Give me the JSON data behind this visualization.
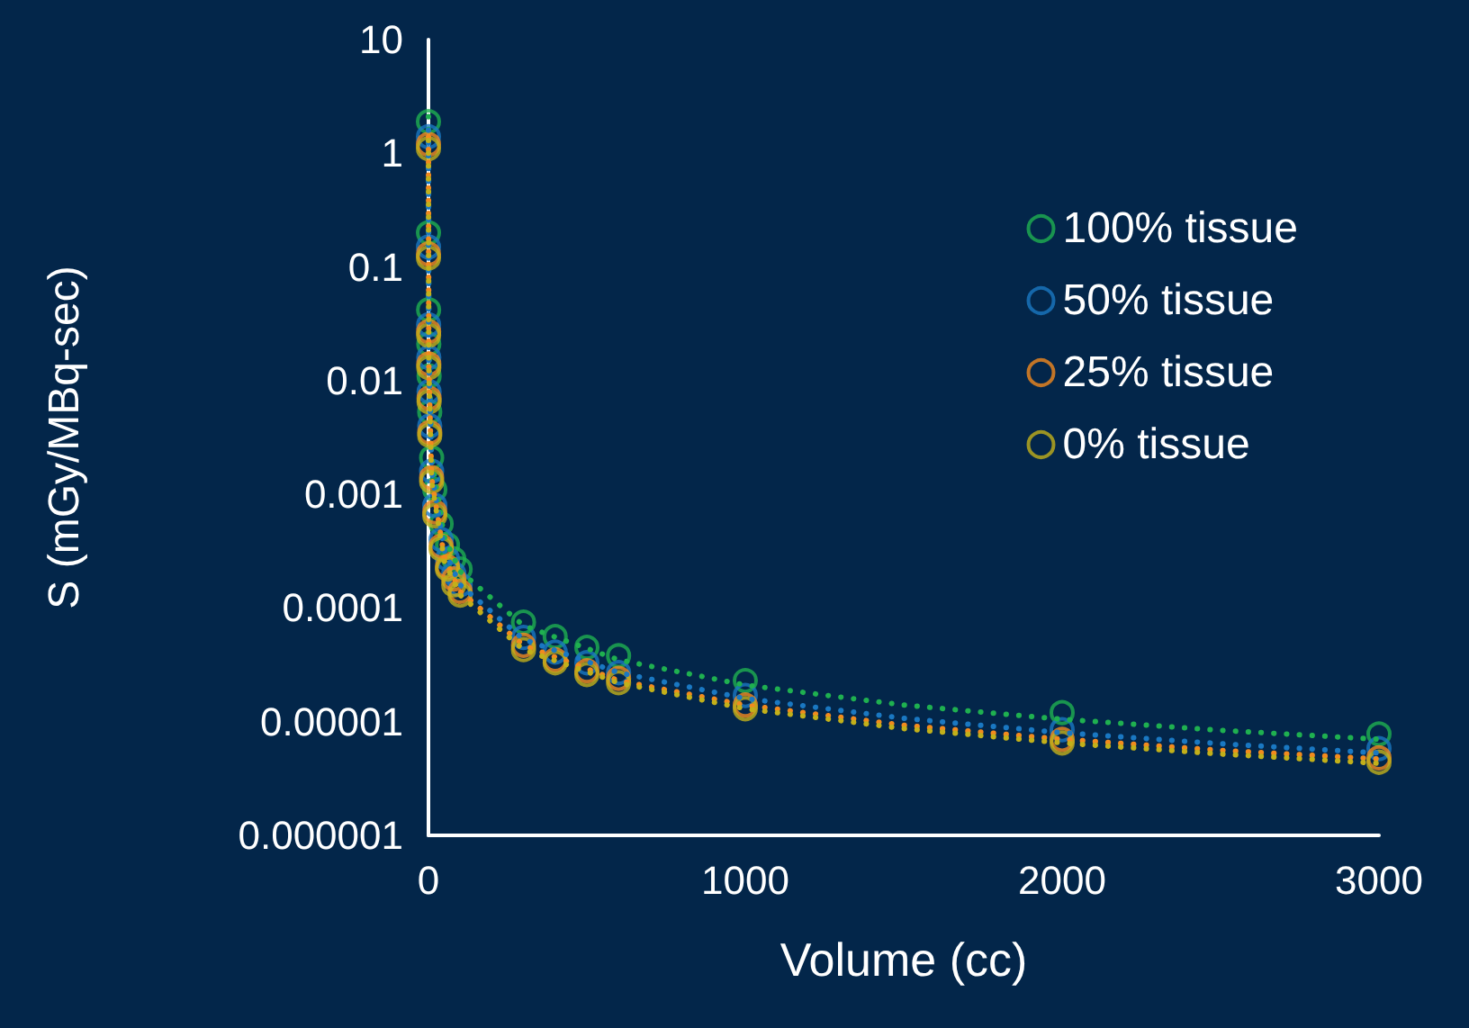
{
  "chart_data": {
    "type": "scatter",
    "xlabel": "Volume (cc)",
    "ylabel": "S (mGy/MBq-sec)",
    "log": "y",
    "marker": "circle",
    "grid": false,
    "legend": "top right",
    "xlim": [
      0,
      3000
    ],
    "xticks": [
      0,
      1000,
      2000,
      3000
    ],
    "ylim": [
      1e-06,
      10
    ],
    "yticks": [
      {
        "value": 1e-06,
        "label": "0.000001"
      },
      {
        "value": 1e-05,
        "label": "0.00001"
      },
      0.0001,
      0.001,
      0.01,
      0.1,
      1,
      10
    ],
    "x": [
      0.01,
      0.1,
      0.5,
      1,
      2,
      4,
      10,
      20,
      40,
      60,
      80,
      100,
      300,
      400,
      500,
      600,
      1000,
      2000,
      3000
    ],
    "series": [
      {
        "name": "100% tissue",
        "color": "#1fb050",
        "values": [
          1.9,
          0.2,
          0.042,
          0.021,
          0.011,
          0.0053,
          0.0021,
          0.0011,
          0.00055,
          0.00036,
          0.00027,
          0.00022,
          7.5e-05,
          5.6e-05,
          4.5e-05,
          3.8e-05,
          2.3e-05,
          1.2e-05,
          7.8e-06
        ]
      },
      {
        "name": "50% tissue",
        "color": "#1a78c2",
        "values": [
          1.4,
          0.15,
          0.031,
          0.016,
          0.008,
          0.004,
          0.0016,
          0.0008,
          0.0004,
          0.00027,
          0.0002,
          0.00016,
          5.5e-05,
          4.1e-05,
          3.3e-05,
          2.7e-05,
          1.7e-05,
          8.5e-06,
          5.8e-06
        ]
      },
      {
        "name": "25% tissue",
        "color": "#f28a1e",
        "values": [
          1.2,
          0.13,
          0.027,
          0.014,
          0.007,
          0.0035,
          0.0014,
          0.0007,
          0.00035,
          0.00023,
          0.00018,
          0.00014,
          4.7e-05,
          3.5e-05,
          2.8e-05,
          2.4e-05,
          1.4e-05,
          7e-06,
          4.8e-06
        ]
      },
      {
        "name": "0% tissue",
        "color": "#c2b01a",
        "values": [
          1.1,
          0.12,
          0.025,
          0.013,
          0.0065,
          0.0033,
          0.0013,
          0.00065,
          0.00033,
          0.00022,
          0.00016,
          0.00013,
          4.3e-05,
          3.3e-05,
          2.6e-05,
          2.2e-05,
          1.3e-05,
          6.5e-06,
          4.4e-06
        ]
      },
      {
        "type": "line",
        "line_style": "dotted",
        "marker": "none",
        "color": "#1fb050",
        "x": [
          0.01,
          1,
          10,
          50,
          100,
          300,
          600,
          1000,
          1500,
          2000,
          2500,
          3000
        ],
        "values": [
          2.1,
          0.021,
          0.0021,
          0.00042,
          0.00021,
          7e-05,
          3.5e-05,
          2.1e-05,
          1.4e-05,
          1.05e-05,
          8.4e-06,
          7e-06
        ]
      },
      {
        "type": "line",
        "line_style": "dotted",
        "marker": "none",
        "color": "#1a78c2",
        "x": [
          0.01,
          1,
          10,
          50,
          100,
          300,
          600,
          1000,
          1500,
          2000,
          2500,
          3000
        ],
        "values": [
          1.6,
          0.016,
          0.0016,
          0.00032,
          0.00016,
          5.3e-05,
          2.7e-05,
          1.6e-05,
          1.07e-05,
          8e-06,
          6.4e-06,
          5.3e-06
        ]
      },
      {
        "type": "line",
        "line_style": "dotted",
        "marker": "none",
        "color": "#f28a1e",
        "x": [
          0.01,
          1,
          10,
          50,
          100,
          300,
          600,
          1000,
          1500,
          2000,
          2500,
          3000
        ],
        "values": [
          1.4,
          0.014,
          0.0014,
          0.00028,
          0.00014,
          4.7e-05,
          2.3e-05,
          1.4e-05,
          9.3e-06,
          7e-06,
          5.6e-06,
          4.7e-06
        ]
      },
      {
        "type": "line",
        "line_style": "dotted",
        "marker": "none",
        "color": "#c2b01a",
        "x": [
          0.01,
          1,
          10,
          50,
          100,
          300,
          600,
          1000,
          1500,
          2000,
          2500,
          3000
        ],
        "values": [
          1.3,
          0.013,
          0.0013,
          0.00026,
          0.00013,
          4.3e-05,
          2.2e-05,
          1.3e-05,
          8.7e-06,
          6.5e-06,
          5.2e-06,
          4.3e-06
        ]
      }
    ]
  }
}
